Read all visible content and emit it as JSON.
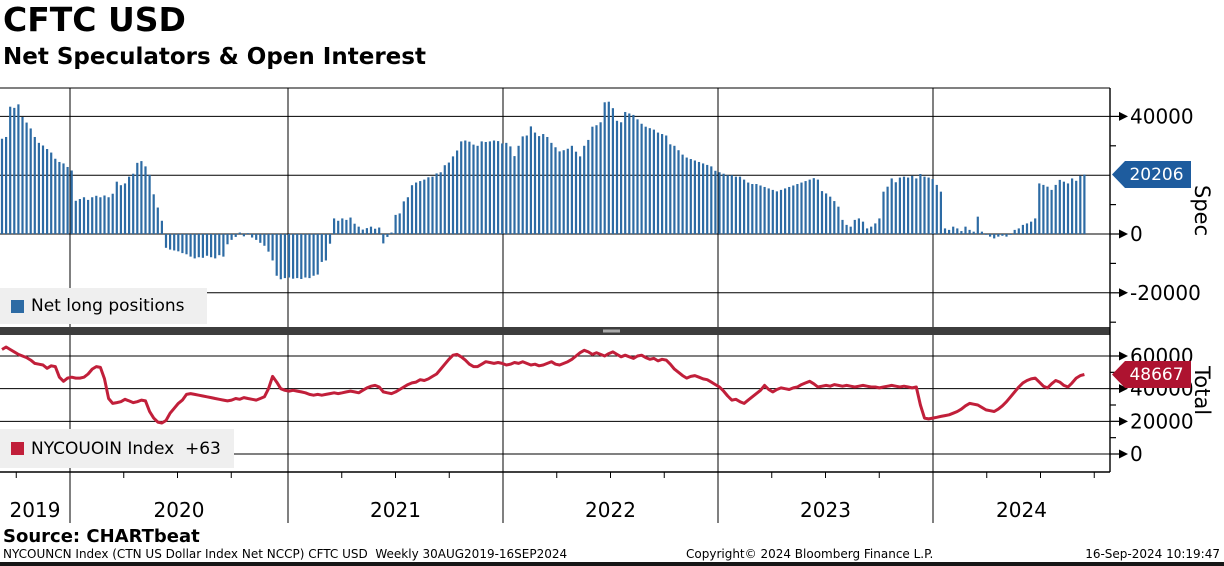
{
  "header": {
    "title": "CFTC USD",
    "subtitle": "Net Speculators & Open Interest"
  },
  "panels": {
    "spec": {
      "axis_title": "Spec",
      "legend_label": "Net long positions",
      "tag_value": "20206",
      "tag_color": "#1e5c9e",
      "bar_color": "#2d6ba4",
      "y_ticks_labeled": [
        40000,
        0,
        -20000
      ],
      "y_ticks_minor": [
        30000,
        10000,
        -10000,
        -30000
      ]
    },
    "total": {
      "axis_title": "Total",
      "legend_label": "NYCOUOIN Index  +63",
      "tag_value": "48667",
      "tag_color": "#ae1330",
      "line_color": "#c11f3a",
      "y_ticks_labeled": [
        60000,
        40000,
        20000,
        0
      ],
      "y_ticks_minor": [
        50000,
        30000,
        10000
      ]
    }
  },
  "x_axis": {
    "years": [
      "2019",
      "2020",
      "2021",
      "2022",
      "2023",
      "2024"
    ]
  },
  "source_line": "Source: CHARTbeat",
  "footer": {
    "left": "NYCOUNCN Index (CTN US Dollar Index Net NCCP) CFTC USD  Weekly 30AUG2019-16SEP2024",
    "center": "Copyright© 2024 Bloomberg Finance L.P.",
    "right": "16-Sep-2024 10:19:47"
  },
  "chart_data": [
    {
      "type": "bar",
      "name": "Net long positions",
      "panel": "Spec",
      "frequency": "weekly",
      "start": "30AUG2019",
      "end": "16SEP2024",
      "last_value": 20206,
      "ylim": [
        -31000,
        50000
      ],
      "y_ticks": [
        40000,
        20000,
        0,
        -20000
      ],
      "color": "#2d6ba4",
      "values": [
        32400,
        33000,
        43300,
        42900,
        44100,
        39800,
        37900,
        35900,
        33000,
        31000,
        30100,
        28900,
        27700,
        25600,
        24500,
        24000,
        22800,
        21600,
        11300,
        11900,
        12500,
        11600,
        12500,
        13000,
        12500,
        13100,
        12500,
        13700,
        17800,
        16600,
        17200,
        19500,
        20500,
        24200,
        24800,
        23000,
        20100,
        13500,
        9000,
        4500,
        -4700,
        -5300,
        -5600,
        -5900,
        -6500,
        -6900,
        -7700,
        -8300,
        -7900,
        -8100,
        -7400,
        -7900,
        -8300,
        -7200,
        -7700,
        -3500,
        -2000,
        -1000,
        500,
        -800,
        300,
        -1200,
        -2000,
        -3000,
        -4000,
        -6000,
        -9000,
        -14200,
        -15400,
        -15000,
        -14800,
        -15200,
        -15000,
        -15300,
        -14800,
        -15000,
        -14200,
        -13800,
        -9500,
        -9000,
        -3300,
        5300,
        4500,
        5300,
        4800,
        5600,
        3500,
        2500,
        1500,
        2000,
        2500,
        1800,
        2200,
        -3200,
        -1000,
        500,
        6500,
        7000,
        11100,
        12500,
        16600,
        17500,
        18000,
        18500,
        19300,
        19500,
        20600,
        21000,
        23400,
        24300,
        26400,
        28400,
        31500,
        31800,
        31400,
        30400,
        30000,
        31500,
        31300,
        31500,
        31800,
        31600,
        30800,
        31000,
        29800,
        26500,
        30000,
        33200,
        33500,
        36600,
        34500,
        33300,
        34000,
        33000,
        31000,
        29500,
        28100,
        28500,
        29000,
        30000,
        28000,
        26400,
        30000,
        32000,
        36500,
        37000,
        38000,
        44800,
        45000,
        42800,
        38500,
        38000,
        41500,
        41000,
        40500,
        39000,
        37500,
        36500,
        36000,
        35500,
        34500,
        34000,
        33500,
        30500,
        30000,
        28500,
        27000,
        26000,
        25500,
        25000,
        24500,
        24000,
        23500,
        23000,
        21500,
        21000,
        20500,
        20000,
        20000,
        19500,
        19500,
        18500,
        17500,
        17000,
        17000,
        16500,
        16000,
        15500,
        15000,
        14500,
        15000,
        15500,
        16000,
        16500,
        17000,
        17500,
        18000,
        18500,
        19000,
        18500,
        14600,
        13800,
        12700,
        11200,
        9300,
        4800,
        3100,
        2500,
        4800,
        5300,
        4200,
        1900,
        2500,
        3600,
        5300,
        14400,
        16100,
        18900,
        17600,
        19200,
        19500,
        19200,
        19800,
        18900,
        20400,
        19500,
        19200,
        18700,
        16700,
        14400,
        1900,
        1400,
        2500,
        1900,
        1000,
        2500,
        1400,
        800,
        5900,
        800,
        -300,
        -900,
        -1500,
        -900,
        -600,
        -900,
        -300,
        1400,
        1900,
        3100,
        3600,
        4200,
        5300,
        17200,
        16700,
        16100,
        15000,
        16700,
        18400,
        17800,
        17200,
        18900,
        18100,
        19800,
        20206
      ]
    },
    {
      "type": "line",
      "name": "NYCOUOIN Index",
      "net_change_label": "+63",
      "panel": "Total",
      "frequency": "weekly",
      "start": "30AUG2019",
      "end": "16SEP2024",
      "last_value": 48667,
      "ylim": [
        0,
        73000
      ],
      "y_ticks": [
        60000,
        40000,
        20000,
        0
      ],
      "color": "#c11f3a",
      "values": [
        64000,
        65500,
        64000,
        62500,
        61000,
        60000,
        59000,
        57500,
        55500,
        55000,
        54500,
        52500,
        54000,
        53500,
        47000,
        44500,
        46500,
        47000,
        46500,
        46500,
        47000,
        49000,
        52000,
        53500,
        53000,
        46000,
        34000,
        31000,
        31500,
        32000,
        33500,
        32500,
        31500,
        32000,
        33000,
        32500,
        26000,
        22000,
        19500,
        19000,
        20500,
        25000,
        28000,
        31000,
        33000,
        36500,
        37000,
        36500,
        36000,
        35500,
        35000,
        34500,
        34000,
        33500,
        33000,
        32500,
        33000,
        34000,
        33500,
        34500,
        34000,
        33500,
        33000,
        34000,
        35000,
        40000,
        47500,
        44000,
        40000,
        39000,
        38500,
        39000,
        38500,
        38000,
        37500,
        36500,
        36000,
        36500,
        36000,
        36500,
        37000,
        37500,
        37000,
        37500,
        38000,
        38500,
        38000,
        37500,
        39000,
        40500,
        41500,
        42000,
        41000,
        38000,
        37500,
        37000,
        38000,
        39500,
        41000,
        42500,
        43500,
        44000,
        45500,
        45000,
        46000,
        47500,
        49000,
        52000,
        55000,
        58000,
        60500,
        61000,
        59500,
        57500,
        55000,
        53500,
        53500,
        55000,
        56500,
        56000,
        55500,
        56000,
        55500,
        54500,
        55000,
        56000,
        55500,
        56500,
        55500,
        54500,
        55000,
        54000,
        54500,
        55500,
        56500,
        55000,
        54500,
        55500,
        56500,
        58000,
        60000,
        62000,
        63500,
        62500,
        61000,
        62000,
        61000,
        60000,
        61500,
        62500,
        61000,
        59500,
        60500,
        59500,
        58500,
        60000,
        60500,
        59000,
        58000,
        58500,
        57000,
        58000,
        57500,
        55000,
        52000,
        50000,
        48000,
        46500,
        47500,
        48000,
        47000,
        46000,
        45500,
        44000,
        42500,
        41000,
        38500,
        35500,
        33000,
        33500,
        32000,
        31000,
        33000,
        35000,
        37000,
        39000,
        42000,
        39500,
        38000,
        39500,
        40500,
        40000,
        39500,
        40500,
        41000,
        42500,
        43500,
        44500,
        43000,
        41000,
        41500,
        42000,
        41500,
        42500,
        42000,
        41500,
        42000,
        41500,
        41000,
        41500,
        42000,
        41500,
        41000,
        41000,
        40500,
        41000,
        41500,
        42000,
        41500,
        41000,
        41500,
        41000,
        40500,
        41000,
        30000,
        22000,
        21500,
        22000,
        22500,
        23000,
        23500,
        24000,
        25000,
        26000,
        27500,
        29500,
        31000,
        30500,
        30000,
        28500,
        27000,
        26500,
        26000,
        27500,
        29500,
        32000,
        35000,
        38000,
        41000,
        43500,
        45000,
        46000,
        46500,
        44000,
        41500,
        40500,
        43000,
        45000,
        44000,
        42000,
        41000,
        43500,
        46500,
        48000,
        48667
      ]
    }
  ]
}
